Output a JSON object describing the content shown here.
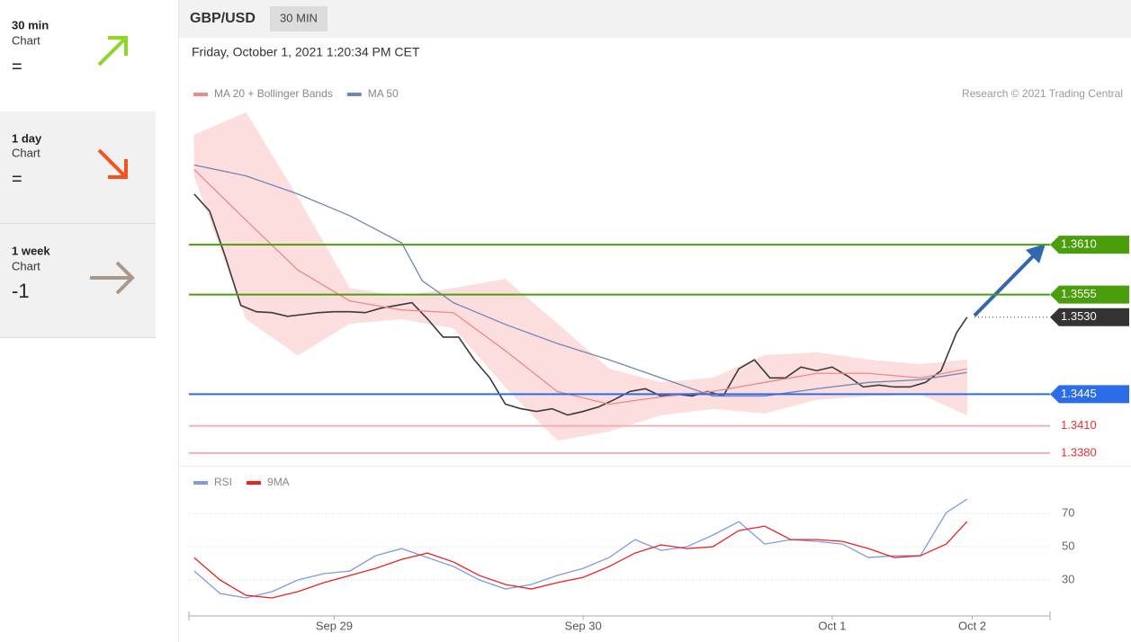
{
  "sidebar": [
    {
      "title": "30 min",
      "subtitle": "Chart",
      "value": "="
    },
    {
      "title": "1 day",
      "subtitle": "Chart",
      "value": "="
    },
    {
      "title": "1 week",
      "subtitle": "Chart",
      "value": "-1"
    }
  ],
  "header": {
    "symbol": "GBP/USD",
    "interval": "30 MIN",
    "date": "Friday, October 1, 2021 1:20:34 PM CET",
    "source": "Research © 2021 Trading Central"
  },
  "chart_data": [
    {
      "type": "line",
      "xlim": [
        0,
        166
      ],
      "ylim": [
        1.3369,
        1.3761
      ],
      "levels": [
        {
          "value": 1.361,
          "label": "1.3610",
          "color": "#4a9e0c",
          "box": true,
          "dotted": false
        },
        {
          "value": 1.3555,
          "label": "1.3555",
          "color": "#4a9e0c",
          "box": true,
          "dotted": false
        },
        {
          "value": 1.353,
          "label": "1.3530",
          "color": "#333333",
          "box": true,
          "dotted": true
        },
        {
          "value": 1.3445,
          "label": "1.3445",
          "color": "#2b6de8",
          "box": true,
          "dotted": false
        },
        {
          "value": 1.341,
          "label": "1.3410",
          "color": "#e83030",
          "box": false,
          "dotted": false
        },
        {
          "value": 1.338,
          "label": "1.3380",
          "color": "#e83030",
          "box": false,
          "dotted": false
        }
      ],
      "series": [
        {
          "color": "#3a3a3a",
          "x": [
            1,
            4,
            7,
            10,
            13,
            16,
            19,
            22,
            25,
            28,
            31,
            34,
            37,
            40,
            43,
            46,
            49,
            52,
            55,
            58,
            61,
            64,
            67,
            70,
            73,
            76,
            79,
            82,
            85,
            88,
            91,
            94,
            97,
            100,
            103,
            106,
            109,
            112,
            115,
            118,
            121,
            124,
            127,
            130,
            133,
            136,
            139,
            142,
            145,
            148,
            150
          ],
          "values": [
            1.3666,
            1.3647,
            1.3597,
            1.3543,
            1.3536,
            1.3535,
            1.3531,
            1.3533,
            1.3535,
            1.3536,
            1.3536,
            1.3535,
            1.354,
            1.3543,
            1.3546,
            1.3528,
            1.3508,
            1.3508,
            1.3483,
            1.3463,
            1.3434,
            1.3429,
            1.3426,
            1.3429,
            1.3422,
            1.3426,
            1.3431,
            1.3439,
            1.3448,
            1.3451,
            1.3443,
            1.3445,
            1.3443,
            1.3448,
            1.3443,
            1.3473,
            1.3483,
            1.3463,
            1.3463,
            1.3475,
            1.3471,
            1.3475,
            1.3465,
            1.3453,
            1.3455,
            1.3453,
            1.3453,
            1.3458,
            1.3471,
            1.3513,
            1.353
          ]
        },
        {
          "name": "MA 20 + Bollinger Bands",
          "color": "#f08888",
          "band_color": "#fcdede",
          "x": [
            1,
            11,
            21,
            31,
            41,
            51,
            61,
            71,
            81,
            91,
            101,
            111,
            121,
            131,
            141,
            150
          ],
          "values": [
            1.3693,
            1.3637,
            1.3582,
            1.3548,
            1.3538,
            1.3535,
            1.3493,
            1.3448,
            1.3434,
            1.3442,
            1.3448,
            1.3458,
            1.3468,
            1.3468,
            1.3463,
            1.3473
          ],
          "upper": [
            1.3731,
            1.3756,
            1.3662,
            1.3562,
            1.3553,
            1.3562,
            1.3572,
            1.3523,
            1.3473,
            1.3458,
            1.3463,
            1.3488,
            1.3491,
            1.3483,
            1.3478,
            1.3483
          ],
          "lower": [
            1.3686,
            1.3528,
            1.3488,
            1.3523,
            1.3528,
            1.3518,
            1.3453,
            1.3394,
            1.3404,
            1.3422,
            1.3429,
            1.3424,
            1.3439,
            1.3443,
            1.3445,
            1.3422
          ]
        },
        {
          "name": "MA 50",
          "color": "#6f86b8",
          "x": [
            1,
            11,
            21,
            31,
            41,
            45,
            51,
            61,
            71,
            81,
            91,
            101,
            111,
            121,
            131,
            141,
            150
          ],
          "values": [
            1.3698,
            1.3686,
            1.3666,
            1.3642,
            1.3612,
            1.357,
            1.3546,
            1.3522,
            1.3501,
            1.3483,
            1.3463,
            1.3443,
            1.3443,
            1.3451,
            1.3458,
            1.3461,
            1.3469
          ]
        }
      ]
    },
    {
      "type": "line",
      "xlim": [
        0,
        166
      ],
      "ylim": [
        8.4,
        94.9
      ],
      "yticks": [
        30,
        50,
        70
      ],
      "grid": true,
      "xticks": [
        {
          "value": 28,
          "label": "Sep 29"
        },
        {
          "value": 76,
          "label": "Sep 30"
        },
        {
          "value": 124,
          "label": "Oct 1"
        },
        {
          "value": 151,
          "label": "Oct 2"
        }
      ],
      "series": [
        {
          "name": "RSI",
          "color": "#7b9be6",
          "x": [
            1,
            6,
            11,
            16,
            21,
            26,
            31,
            36,
            41,
            46,
            51,
            56,
            61,
            66,
            71,
            76,
            81,
            86,
            91,
            96,
            101,
            106,
            111,
            116,
            121,
            126,
            131,
            136,
            141,
            146,
            150
          ],
          "values": [
            35.4,
            21.9,
            19.2,
            23,
            30,
            33.8,
            35.4,
            44.6,
            48.9,
            43.5,
            38.1,
            30,
            24.6,
            27.3,
            32.7,
            37,
            43.5,
            54.3,
            47.8,
            50,
            57,
            65.1,
            51.6,
            54.3,
            53.2,
            51.6,
            43.5,
            44.6,
            44.6,
            70.5,
            78.6
          ]
        },
        {
          "name": "9MA",
          "color": "#f02020",
          "x": [
            1,
            6,
            11,
            16,
            21,
            26,
            31,
            36,
            41,
            46,
            51,
            56,
            61,
            66,
            71,
            76,
            81,
            86,
            91,
            96,
            101,
            106,
            111,
            116,
            121,
            126,
            131,
            136,
            141,
            146,
            150
          ],
          "values": [
            43.5,
            30,
            20.8,
            19.2,
            23,
            28.4,
            32.7,
            37,
            42.4,
            46.2,
            40.8,
            32.7,
            27.3,
            24.6,
            28.4,
            31.6,
            38.1,
            46.2,
            51.1,
            48.9,
            50,
            59.7,
            62.4,
            54.3,
            54.3,
            53.2,
            48.9,
            43.5,
            44.6,
            51.6,
            65.1
          ]
        }
      ]
    }
  ]
}
